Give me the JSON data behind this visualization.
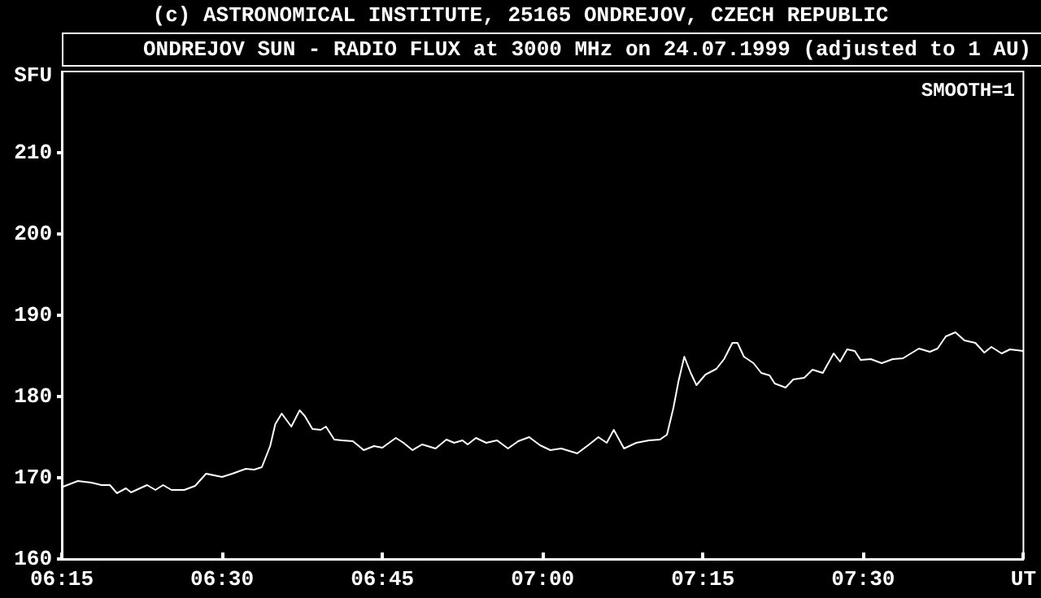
{
  "chart_data": {
    "type": "line",
    "title": "ONDREJOV SUN - RADIO FLUX at 3000 MHz on 24.07.1999 (adjusted to 1 AU)",
    "ylabel": "SFU",
    "annotations": [
      "(c) ASTRONOMICAL INSTITUTE, 25165 ONDREJOV, CZECH REPUBLIC",
      "SMOOTH=1"
    ],
    "xlim": [
      6.25,
      7.75
    ],
    "xticks": [
      {
        "value": 6.25,
        "label": "06:15"
      },
      {
        "value": 6.5,
        "label": "06:30"
      },
      {
        "value": 6.75,
        "label": "06:45"
      },
      {
        "value": 7,
        "label": "07:00"
      },
      {
        "value": 7.25,
        "label": "07:15"
      },
      {
        "value": 7.5,
        "label": "07:30"
      },
      {
        "value": 7.75,
        "label": "UT"
      }
    ],
    "ylim": [
      160,
      220
    ],
    "yticks": [
      160,
      170,
      180,
      190,
      200,
      210
    ],
    "grid": false,
    "marker": "none",
    "line_style": "solid",
    "series": [
      {
        "color": "#ffffff",
        "x": [
          6.252,
          6.275,
          6.296,
          6.312,
          6.325,
          6.336,
          6.35,
          6.358,
          6.383,
          6.396,
          6.408,
          6.421,
          6.441,
          6.458,
          6.475,
          6.5,
          6.516,
          6.537,
          6.55,
          6.562,
          6.575,
          6.583,
          6.593,
          6.608,
          6.621,
          6.629,
          6.641,
          6.654,
          6.662,
          6.675,
          6.687,
          6.704,
          6.721,
          6.737,
          6.75,
          6.771,
          6.783,
          6.797,
          6.812,
          6.833,
          6.85,
          6.862,
          6.875,
          6.883,
          6.896,
          6.912,
          6.929,
          6.946,
          6.962,
          6.979,
          6.996,
          7.012,
          7.029,
          7.054,
          7.071,
          7.087,
          7.1,
          7.111,
          7.127,
          7.146,
          7.166,
          7.183,
          7.194,
          7.204,
          7.212,
          7.221,
          7.231,
          7.24,
          7.254,
          7.271,
          7.283,
          7.296,
          7.304,
          7.314,
          7.329,
          7.341,
          7.354,
          7.362,
          7.379,
          7.391,
          7.408,
          7.421,
          7.437,
          7.454,
          7.464,
          7.475,
          7.487,
          7.496,
          7.512,
          7.529,
          7.546,
          7.562,
          7.587,
          7.604,
          7.616,
          7.629,
          7.644,
          7.658,
          7.675,
          7.689,
          7.7,
          7.716,
          7.729,
          7.75
        ],
        "values": [
          168.9,
          169.6,
          169.4,
          169.1,
          169.1,
          168.1,
          168.7,
          168.2,
          169.1,
          168.5,
          169.1,
          168.5,
          168.5,
          169.0,
          170.5,
          170.1,
          170.5,
          171.1,
          171.0,
          171.3,
          173.9,
          176.6,
          177.9,
          176.3,
          178.3,
          177.6,
          176.0,
          175.9,
          176.3,
          174.7,
          174.6,
          174.5,
          173.4,
          173.9,
          173.7,
          174.9,
          174.3,
          173.4,
          174.1,
          173.6,
          174.7,
          174.3,
          174.6,
          174.1,
          174.9,
          174.3,
          174.6,
          173.6,
          174.5,
          175.0,
          174.0,
          173.4,
          173.6,
          173.0,
          174.0,
          175.0,
          174.3,
          175.9,
          173.6,
          174.3,
          174.6,
          174.7,
          175.3,
          178.6,
          181.9,
          184.9,
          182.9,
          181.4,
          182.7,
          183.4,
          184.6,
          186.6,
          186.6,
          184.9,
          184.1,
          182.9,
          182.6,
          181.6,
          181.1,
          182.1,
          182.3,
          183.3,
          182.9,
          185.3,
          184.3,
          185.8,
          185.6,
          184.5,
          184.6,
          184.1,
          184.6,
          184.7,
          185.9,
          185.5,
          185.9,
          187.4,
          187.9,
          186.9,
          186.6,
          185.4,
          186.1,
          185.3,
          185.8,
          185.6
        ]
      }
    ]
  }
}
